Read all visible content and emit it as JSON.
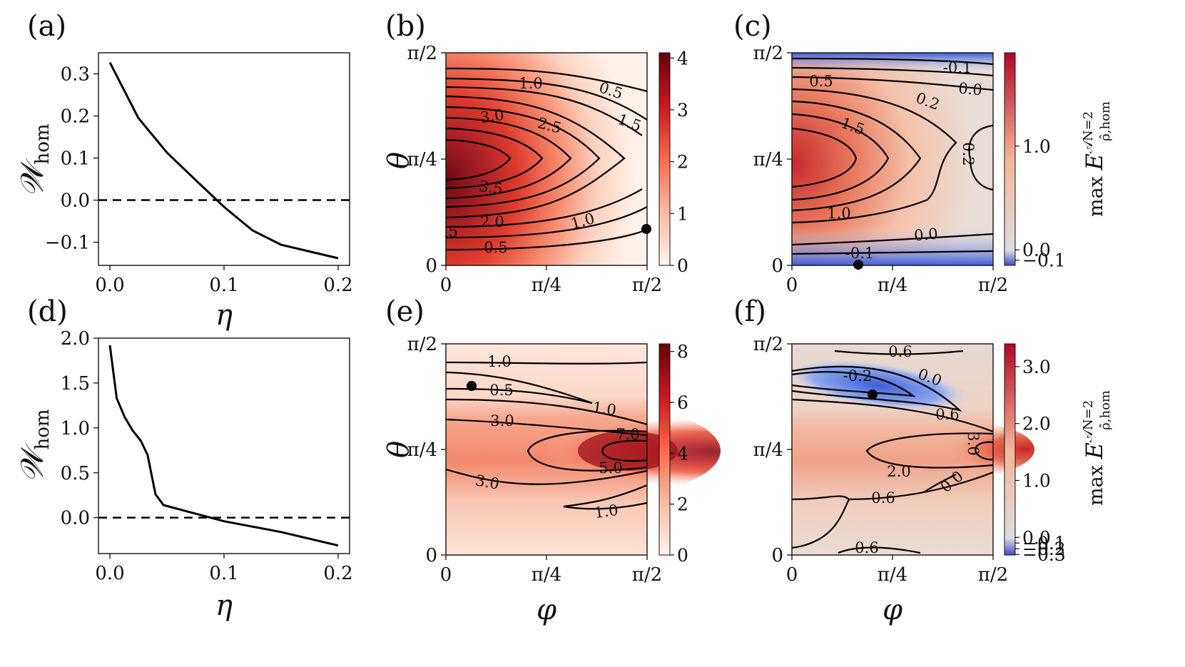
{
  "chart_data": [
    {
      "panel": "(a)",
      "type": "line",
      "xlabel": "η",
      "ylabel": "𝒲hom",
      "xlim": [
        -0.01,
        0.21
      ],
      "ylim": [
        -0.155,
        0.35
      ],
      "xticks": [
        "0.0",
        "0.1",
        "0.2"
      ],
      "yticks": [
        "0.3",
        "0.2",
        "0.1",
        "0.0",
        "−0.1"
      ],
      "series": [
        {
          "x": [
            0.0,
            0.025,
            0.05,
            0.075,
            0.1,
            0.125,
            0.15,
            0.2
          ],
          "y": [
            0.327,
            0.195,
            0.113,
            0.048,
            -0.016,
            -0.072,
            -0.106,
            -0.138
          ]
        }
      ],
      "reference_line": {
        "y": 0.0,
        "style": "dashed"
      }
    },
    {
      "panel": "(b)",
      "type": "heatmap",
      "xlabel": "",
      "ylabel": "θ",
      "xticks": [
        "0",
        "π/4",
        "π/2"
      ],
      "yticks": [
        "0",
        "π/4",
        "π/2"
      ],
      "colorbar": {
        "min": 0,
        "max": 4.1,
        "ticks": [
          "0",
          "1",
          "2",
          "3",
          "4"
        ],
        "colormap": "Reds"
      },
      "contour_labels": [
        "1.0",
        "0.5",
        "1.5",
        "3.0",
        "2.5",
        "3.5",
        "2.0",
        "1.0",
        ".5",
        "0.5"
      ],
      "marker": {
        "phi": 1.57,
        "theta": 0.35
      }
    },
    {
      "panel": "(c)",
      "type": "heatmap",
      "xlabel": "",
      "ylabel": "",
      "xticks": [
        "0",
        "π/4",
        "π/2"
      ],
      "yticks": [
        "0",
        "π/4",
        "π/2"
      ],
      "colorbar": {
        "min": -0.15,
        "max": 1.9,
        "ticks": [
          "1.0",
          "0.0",
          "−0.1"
        ],
        "colormap": "RdBu_r",
        "label": "max E^{𝒜N=2}_{ρ̂,hom}"
      },
      "contour_labels": [
        "-0.1",
        "0.5",
        "0.0",
        "0.2",
        "1.5",
        "0.2",
        "1.0",
        "0.0",
        "-0.1"
      ],
      "marker": {
        "phi": 0.52,
        "theta": 0.0
      }
    },
    {
      "panel": "(d)",
      "type": "line",
      "xlabel": "η",
      "ylabel": "𝒲hom",
      "xlim": [
        -0.01,
        0.21
      ],
      "ylim": [
        -0.4,
        2.0
      ],
      "xticks": [
        "0.0",
        "0.1",
        "0.2"
      ],
      "yticks": [
        "2.0",
        "1.5",
        "1.0",
        "0.5",
        "0.0"
      ],
      "series": [
        {
          "x": [
            0.0,
            0.006,
            0.013,
            0.02,
            0.027,
            0.033,
            0.04,
            0.047,
            0.1,
            0.15,
            0.2
          ],
          "y": [
            1.92,
            1.33,
            1.12,
            0.97,
            0.86,
            0.7,
            0.26,
            0.14,
            -0.04,
            -0.16,
            -0.31
          ]
        }
      ],
      "reference_line": {
        "y": 0.0,
        "style": "dashed"
      }
    },
    {
      "panel": "(e)",
      "type": "heatmap",
      "xlabel": "φ",
      "ylabel": "θ",
      "xticks": [
        "0",
        "π/4",
        "π/2"
      ],
      "yticks": [
        "0",
        "π/4",
        "π/2"
      ],
      "colorbar": {
        "min": 0,
        "max": 8.3,
        "ticks": [
          "0",
          "2",
          "4",
          "6",
          "8"
        ],
        "colormap": "Reds"
      },
      "contour_labels": [
        "1.0",
        "0.5",
        "1.0",
        "3.0",
        "7.0",
        "5.0",
        "3.0",
        "1.0"
      ],
      "marker": {
        "phi": 0.2,
        "theta": 1.33
      }
    },
    {
      "panel": "(f)",
      "type": "heatmap",
      "xlabel": "φ",
      "ylabel": "",
      "xticks": [
        "0",
        "π/4",
        "π/2"
      ],
      "yticks": [
        "0",
        "π/4",
        "π/2"
      ],
      "colorbar": {
        "min": -0.31,
        "max": 3.4,
        "ticks": [
          "3.0",
          "2.0",
          "1.0",
          "0.0",
          "−0.1",
          "−0.2",
          "−0.3"
        ],
        "colormap": "RdBu_r",
        "label": "max E^{𝒜N=2}_{ρ̂,hom}"
      },
      "contour_labels": [
        "0.6",
        "-0.2",
        "0.0",
        "0.6",
        "3.0",
        "2.0",
        "0.0",
        "0.6",
        "0.6"
      ],
      "marker": {
        "phi": 0.63,
        "theta": 1.26
      }
    }
  ]
}
